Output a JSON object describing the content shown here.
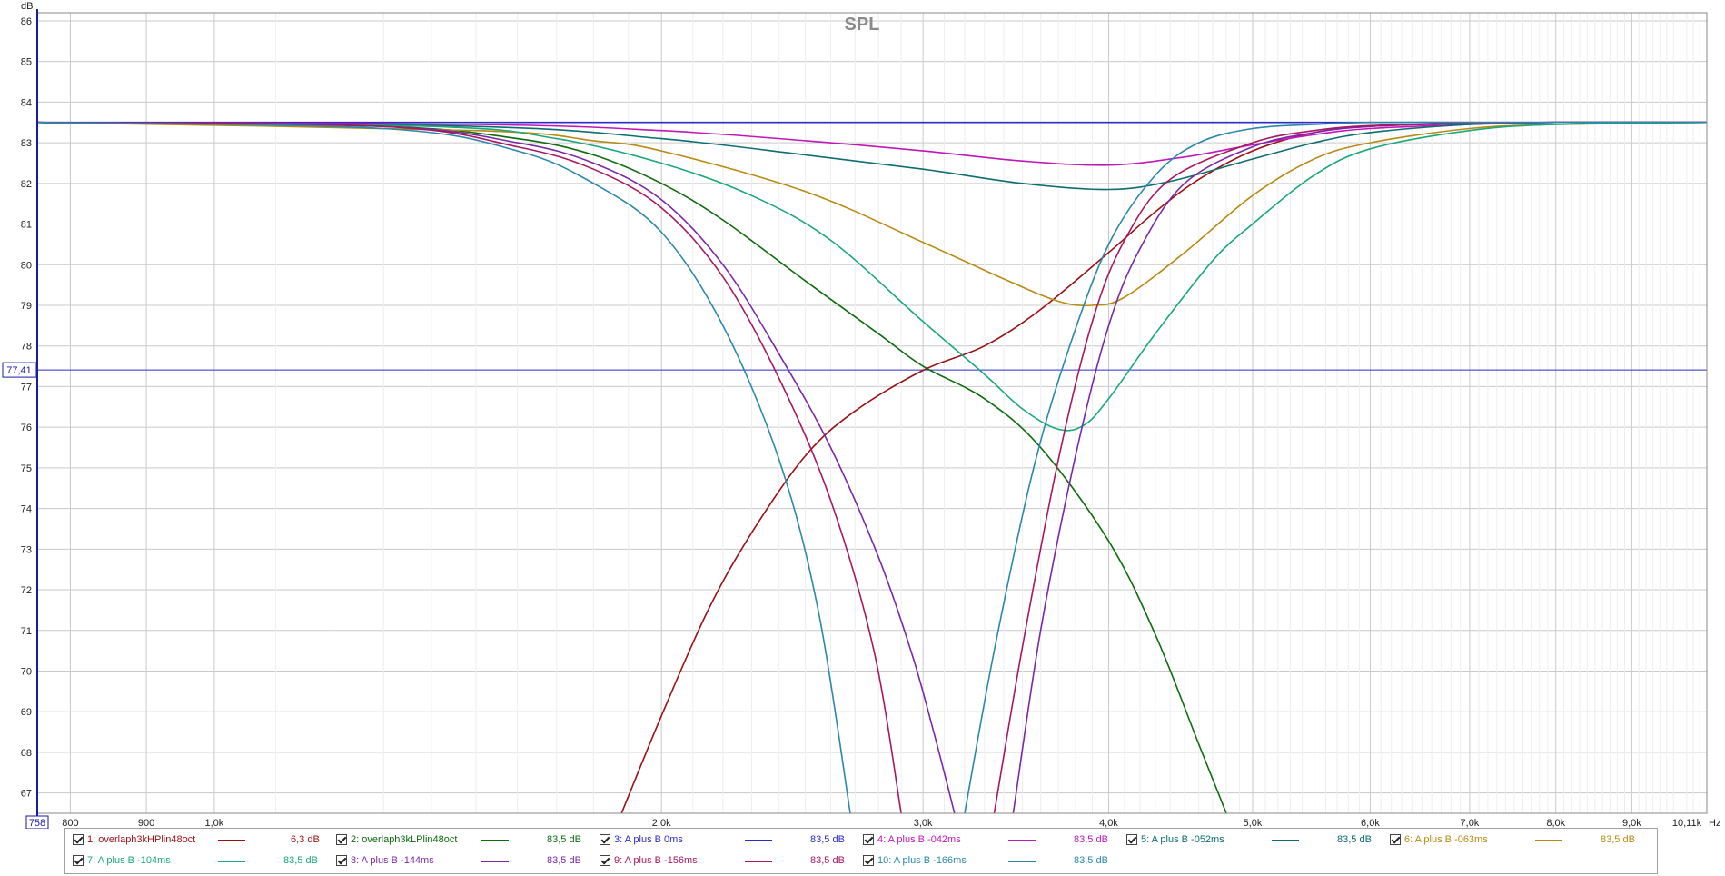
{
  "chart_data": {
    "type": "line",
    "title": "SPL",
    "ylabel": "dB",
    "xunit": "Hz",
    "xscale": "log",
    "xlim": [
      760,
      10110
    ],
    "ylim": [
      66.5,
      86.2
    ],
    "y_ticks": [
      67,
      68,
      69,
      70,
      71,
      72,
      73,
      74,
      75,
      76,
      77,
      78,
      79,
      80,
      81,
      82,
      83,
      84,
      85,
      86
    ],
    "x_ticks": [
      {
        "value": 800,
        "label": "800"
      },
      {
        "value": 900,
        "label": "900"
      },
      {
        "value": 1000,
        "label": "1,0k"
      },
      {
        "value": 2000,
        "label": "2,0k"
      },
      {
        "value": 3000,
        "label": "3,0k"
      },
      {
        "value": 4000,
        "label": "4,0k"
      },
      {
        "value": 5000,
        "label": "5,0k"
      },
      {
        "value": 6000,
        "label": "6,0k"
      },
      {
        "value": 7000,
        "label": "7,0k"
      },
      {
        "value": 8000,
        "label": "8,0k"
      },
      {
        "value": 9000,
        "label": "9,0k"
      },
      {
        "value": 10110,
        "label": "10,11k"
      }
    ],
    "x_left_label": "758",
    "cursor_y_label": "77,41",
    "cursor_y": 77.41,
    "grid": true,
    "series": [
      {
        "name": "1: overlaph3kHPlin48oct",
        "color": "#9b1015",
        "value": "6,3 dB",
        "x": [
          1880,
          2000,
          2150,
          2300,
          2500,
          2700,
          3000,
          3300,
          3600,
          4000,
          4300,
          4600,
          5000,
          5500,
          6000,
          7000,
          8000,
          10110
        ],
        "y": [
          66.5,
          68.9,
          71.5,
          73.4,
          75.3,
          76.4,
          77.4,
          78.0,
          78.9,
          80.3,
          81.3,
          82.1,
          82.8,
          83.25,
          83.4,
          83.48,
          83.5,
          83.5
        ]
      },
      {
        "name": "2: overlaph3kLPlin48oct",
        "color": "#0e6b0e",
        "value": "83,5 dB",
        "x": [
          760,
          1300,
          1600,
          1800,
          2000,
          2200,
          2500,
          2800,
          3000,
          3300,
          3600,
          4000,
          4300,
          4600,
          4800
        ],
        "y": [
          83.5,
          83.4,
          83.1,
          82.7,
          82.0,
          81.1,
          79.6,
          78.3,
          77.5,
          76.7,
          75.5,
          73.2,
          70.9,
          68.2,
          66.5
        ]
      },
      {
        "name": "3: A plus B 0ms",
        "color": "#2b2bc8",
        "value": "83,5 dB",
        "x": [
          760,
          10110
        ],
        "y": [
          83.5,
          83.5
        ]
      },
      {
        "name": "4: A plus B -042ms",
        "color": "#c018b8",
        "value": "83,5 dB",
        "x": [
          760,
          1500,
          2000,
          2500,
          3000,
          3500,
          4000,
          4500,
          5000,
          5500,
          6000,
          7000,
          8000,
          10110
        ],
        "y": [
          83.5,
          83.45,
          83.3,
          83.05,
          82.8,
          82.55,
          82.45,
          82.65,
          82.95,
          83.2,
          83.35,
          83.45,
          83.5,
          83.5
        ]
      },
      {
        "name": "5: A plus B -052ms",
        "color": "#0c6e70",
        "value": "83,5 dB",
        "x": [
          760,
          1500,
          2000,
          2500,
          3000,
          3500,
          4000,
          4400,
          5000,
          5500,
          6000,
          7000,
          8000,
          10110
        ],
        "y": [
          83.5,
          83.4,
          83.1,
          82.7,
          82.35,
          82.0,
          81.85,
          82.05,
          82.6,
          83.0,
          83.25,
          83.45,
          83.5,
          83.5
        ]
      },
      {
        "name": "6: A plus B -063ms",
        "color": "#b88a12",
        "value": "83,5 dB",
        "x": [
          760,
          1500,
          1800,
          2000,
          2500,
          3000,
          3400,
          3700,
          3900,
          4100,
          4500,
          5000,
          5500,
          6000,
          7000,
          8000,
          10110
        ],
        "y": [
          83.5,
          83.3,
          83.05,
          82.8,
          81.8,
          80.55,
          79.65,
          79.1,
          79.0,
          79.2,
          80.3,
          81.7,
          82.6,
          83.0,
          83.35,
          83.45,
          83.5
        ]
      },
      {
        "name": "7: A plus B -104ms",
        "color": "#1aa87a",
        "value": "83,5 dB",
        "x": [
          760,
          1400,
          1700,
          2000,
          2300,
          2600,
          3000,
          3300,
          3500,
          3700,
          3850,
          4000,
          4300,
          4700,
          5000,
          5500,
          6000,
          7000,
          8000,
          10110
        ],
        "y": [
          83.5,
          83.4,
          83.1,
          82.5,
          81.7,
          80.6,
          78.6,
          77.3,
          76.45,
          75.95,
          76.05,
          76.7,
          78.3,
          80.1,
          81.0,
          82.2,
          82.85,
          83.3,
          83.45,
          83.5
        ]
      },
      {
        "name": "8: A plus B -144ms",
        "color": "#7a28a8",
        "value": "83,5 dB",
        "x": [
          760,
          1300,
          1600,
          1800,
          2000,
          2200,
          2400,
          2600,
          2800,
          2950,
          3050,
          3150
        ],
        "y": [
          83.5,
          83.4,
          83.0,
          82.5,
          81.6,
          80.0,
          77.8,
          75.5,
          72.8,
          70.4,
          68.5,
          66.5
        ]
      },
      {
        "name": "9: A plus B -156ms",
        "color": "#a81860",
        "value": "83,5 dB",
        "x": [
          760,
          1300,
          1600,
          1800,
          2000,
          2200,
          2400,
          2600,
          2780,
          2900
        ],
        "y": [
          83.5,
          83.4,
          82.9,
          82.35,
          81.4,
          79.7,
          77.2,
          74.2,
          70.5,
          66.5
        ]
      },
      {
        "name": "10: A plus B -166ms",
        "color": "#2a88aa",
        "value": "83,5 dB",
        "x": [
          760,
          1300,
          1600,
          1800,
          2000,
          2200,
          2400,
          2550,
          2680
        ],
        "y": [
          83.5,
          83.35,
          82.8,
          82.0,
          80.8,
          78.5,
          75.2,
          71.5,
          66.5
        ]
      },
      {
        "name": "8: A plus B -144ms (upper branch)",
        "color": "#7a28a8",
        "legend": false,
        "x": [
          3450,
          3600,
          3800,
          4000,
          4200,
          4500,
          5000,
          5500,
          6000,
          7000,
          8000,
          10110
        ],
        "y": [
          66.5,
          71.0,
          75.3,
          78.5,
          80.4,
          82.0,
          82.9,
          83.25,
          83.4,
          83.48,
          83.5,
          83.5
        ]
      },
      {
        "name": "9: A plus B -156ms (upper branch)",
        "color": "#a81860",
        "legend": false,
        "x": [
          3350,
          3500,
          3700,
          3900,
          4100,
          4400,
          5000,
          5500,
          6000,
          7000,
          8000,
          10110
        ],
        "y": [
          66.5,
          70.6,
          75.2,
          78.6,
          80.6,
          82.1,
          83.0,
          83.3,
          83.42,
          83.48,
          83.5,
          83.5
        ]
      },
      {
        "name": "10: A plus B -166ms (upper branch)",
        "color": "#2a88aa",
        "legend": false,
        "x": [
          3200,
          3350,
          3550,
          3750,
          4000,
          4300,
          4600,
          5000,
          5500,
          6000,
          7000,
          8000,
          10110
        ],
        "y": [
          66.5,
          70.5,
          74.8,
          77.8,
          80.5,
          82.2,
          83.0,
          83.35,
          83.45,
          83.5,
          83.5,
          83.5,
          83.5
        ]
      }
    ]
  },
  "legend": [
    {
      "label": "1: overlaph3kHPlin48oct",
      "value": "6,3 dB",
      "color": "#9b1015"
    },
    {
      "label": "2: overlaph3kLPlin48oct",
      "value": "83,5 dB",
      "color": "#0e6b0e"
    },
    {
      "label": "3: A plus B 0ms",
      "value": "83,5 dB",
      "color": "#2b2bc8"
    },
    {
      "label": "4: A plus B -042ms",
      "value": "83,5 dB",
      "color": "#c018b8"
    },
    {
      "label": "5: A plus B -052ms",
      "value": "83,5 dB",
      "color": "#0c6e70"
    },
    {
      "label": "6: A plus B -063ms",
      "value": "83,5 dB",
      "color": "#b88a12"
    },
    {
      "label": "7: A plus B -104ms",
      "value": "83,5 dB",
      "color": "#1aa87a"
    },
    {
      "label": "8: A plus B -144ms",
      "value": "83,5 dB",
      "color": "#7a28a8"
    },
    {
      "label": "9: A plus B -156ms",
      "value": "83,5 dB",
      "color": "#a81860"
    },
    {
      "label": "10: A plus B -166ms",
      "value": "83,5 dB",
      "color": "#2a88aa"
    }
  ]
}
